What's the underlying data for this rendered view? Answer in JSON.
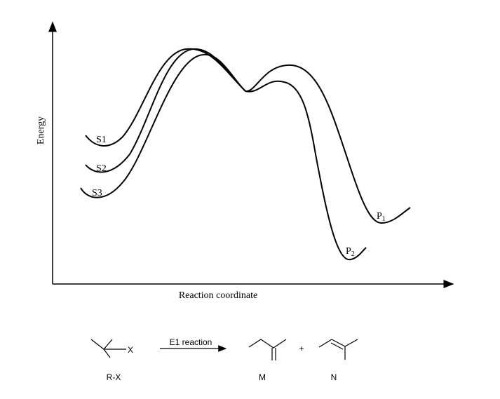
{
  "axes": {
    "y_label": "Energy",
    "x_label": "Reaction coordinate"
  },
  "curve_labels": [
    "S1",
    "S2",
    "S3"
  ],
  "product_labels": [
    {
      "letter": "P",
      "subscript": "1"
    },
    {
      "letter": "P",
      "subscript": "2"
    }
  ],
  "scheme": {
    "reactant_group": "X",
    "reactant": "R-X",
    "arrow_label": "E1 reaction",
    "plus": "+",
    "products": [
      "M",
      "N"
    ]
  }
}
